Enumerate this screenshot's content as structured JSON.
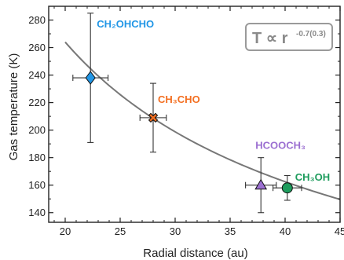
{
  "chart_data": {
    "type": "scatter",
    "title": "",
    "xlabel": "Radial distance (au)",
    "ylabel": "Gas temperature (K)",
    "xlim": [
      18.5,
      45
    ],
    "ylim": [
      133,
      290
    ],
    "xticks": [
      20,
      25,
      30,
      35,
      40,
      45
    ],
    "yticks": [
      140,
      160,
      180,
      200,
      220,
      240,
      260,
      280
    ],
    "grid": false,
    "fit": {
      "label_main": "T ∝ r",
      "label_exp": "-0.7(0.3)",
      "exponent": -0.7,
      "ref_x": 20,
      "ref_y": 264,
      "color": "#777777",
      "x_range": [
        20,
        45
      ]
    },
    "points": [
      {
        "name": "CH₂OHCHO",
        "x": 22.3,
        "y": 238,
        "x_err": 1.6,
        "y_err_low": 47,
        "y_err_high": 47,
        "marker": "diamond",
        "color": "#2196e6"
      },
      {
        "name": "CH₃CHO",
        "x": 28.0,
        "y": 209,
        "x_err": 1.2,
        "y_err_low": 25,
        "y_err_high": 25,
        "marker": "x-square",
        "color": "#f36f21"
      },
      {
        "name": "HCOOCH₃",
        "x": 37.8,
        "y": 160,
        "x_err": 1.4,
        "y_err_low": 20,
        "y_err_high": 20,
        "marker": "triangle",
        "color": "#9b6fd1"
      },
      {
        "name": "CH₃OH",
        "x": 40.2,
        "y": 158,
        "x_err": 1.3,
        "y_err_low": 9,
        "y_err_high": 9,
        "marker": "circle",
        "color": "#1e9c5d"
      }
    ]
  }
}
